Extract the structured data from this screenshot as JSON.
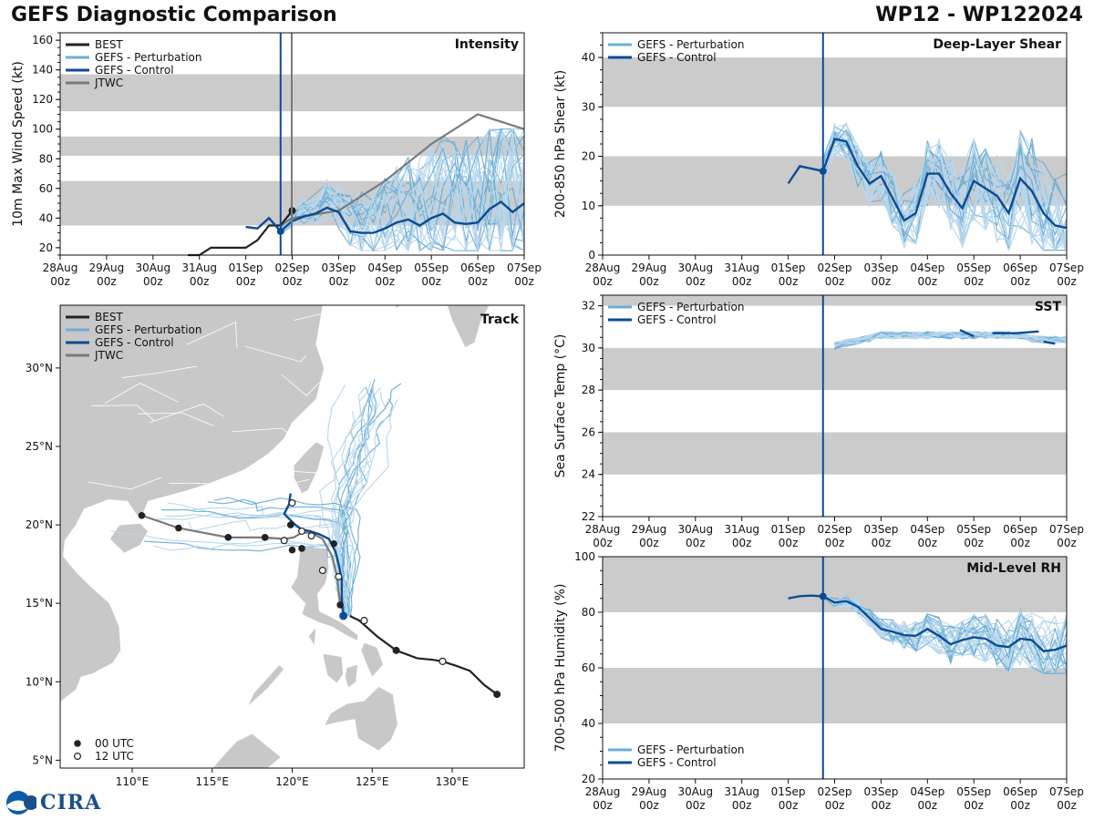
{
  "header": {
    "title_left": "GEFS Diagnostic Comparison",
    "title_right": "WP12 - WP122024"
  },
  "logo": {
    "text": "CIRA",
    "badge": "NOAA"
  },
  "colors": {
    "best": "#222222",
    "perturbation": "#6baed6",
    "perturbation_light": "#b9d7ec",
    "control": "#0b4c94",
    "jtwc": "#7a7a7a",
    "band": "#cbcbcb",
    "land": "#c8c8c8"
  },
  "time_axis": {
    "ticks": [
      "28Aug\n00z",
      "29Aug\n00z",
      "30Aug\n00z",
      "31Aug\n00z",
      "01Sep\n00z",
      "02Sep\n00z",
      "03Sep\n00z",
      "04Sep\n00z",
      "05Sep\n00z",
      "06Sep\n00z",
      "07Sep\n00z"
    ],
    "range_days": [
      0,
      10
    ],
    "init_day": 4.75
  },
  "chart_data": [
    {
      "id": "intensity",
      "type": "line",
      "title": "Intensity",
      "ylabel": "10m Max Wind Speed (kt)",
      "ylim": [
        15,
        165
      ],
      "yticks": [
        20,
        40,
        60,
        80,
        100,
        120,
        140,
        160
      ],
      "bands": [
        [
          35,
          65
        ],
        [
          82,
          95
        ],
        [
          112,
          137
        ]
      ],
      "legend": [
        "BEST",
        "GEFS - Perturbation",
        "GEFS - Control",
        "JTWC"
      ],
      "best": {
        "x": [
          2.75,
          3,
          3.25,
          3.5,
          3.75,
          4,
          4.25,
          4.5,
          4.75,
          5
        ],
        "y": [
          15,
          15,
          20,
          20,
          20,
          20,
          25,
          35,
          35,
          45
        ]
      },
      "best_label": "BEST",
      "control": {
        "name": "GEFS - Control",
        "x": [
          4,
          4.25,
          4.5,
          4.75,
          5,
          5.25,
          5.5,
          5.75,
          6,
          6.25,
          6.5,
          6.75,
          7,
          7.25,
          7.5,
          7.75,
          8,
          8.25,
          8.5,
          8.75,
          9,
          9.25,
          9.5,
          9.75,
          10
        ],
        "y": [
          34,
          33,
          40,
          31,
          38,
          41,
          43,
          47,
          44,
          31,
          30,
          30,
          33,
          37,
          39,
          35,
          40,
          43,
          37,
          36,
          37,
          46,
          51,
          44,
          50
        ]
      },
      "jtwc": {
        "name": "JTWC",
        "x": [
          4.75,
          5,
          6,
          7,
          8,
          9,
          10
        ],
        "y": [
          35,
          40,
          45,
          65,
          90,
          110,
          100
        ]
      },
      "init_marker_x": 4.75,
      "jtwc_line_x": 4.99
    },
    {
      "id": "shear",
      "type": "line",
      "title": "Deep-Layer Shear",
      "ylabel": "200-850 hPa Shear (kt)",
      "ylim": [
        0,
        45
      ],
      "yticks": [
        0,
        10,
        20,
        30,
        40
      ],
      "bands": [
        [
          10,
          20
        ],
        [
          30,
          40
        ]
      ],
      "legend": [
        "GEFS - Perturbation",
        "GEFS - Control"
      ],
      "control": {
        "name": "GEFS - Control",
        "x": [
          4,
          4.25,
          4.5,
          4.75,
          5,
          5.25,
          5.5,
          5.75,
          6,
          6.25,
          6.5,
          6.75,
          7,
          7.25,
          7.5,
          7.75,
          8,
          8.25,
          8.5,
          8.75,
          9,
          9.25,
          9.5,
          9.75,
          10
        ],
        "y": [
          14.5,
          18,
          17.5,
          17,
          23.5,
          23,
          18,
          14.5,
          16,
          11.5,
          7,
          8.5,
          16.5,
          16.5,
          12.5,
          9.5,
          15,
          13.5,
          12,
          8.5,
          15.5,
          13,
          8.5,
          6,
          5.5
        ]
      }
    },
    {
      "id": "sst",
      "type": "line",
      "title": "SST",
      "ylabel": "Sea Surface Temp (°C)",
      "ylim": [
        22,
        32.5
      ],
      "yticks": [
        22,
        24,
        26,
        28,
        30,
        32
      ],
      "bands": [
        [
          24,
          26
        ],
        [
          28,
          30
        ],
        [
          32,
          32.5
        ]
      ],
      "legend": [
        "GEFS - Perturbation",
        "GEFS - Control"
      ],
      "control": {
        "name": "GEFS - Control",
        "segments": [
          {
            "x": [
              7.7,
              8.0
            ],
            "y": [
              30.85,
              30.55
            ]
          },
          {
            "x": [
              8.4,
              8.9,
              9.4
            ],
            "y": [
              30.7,
              30.7,
              30.78
            ]
          },
          {
            "x": [
              9.5,
              9.75
            ],
            "y": [
              30.3,
              30.2
            ]
          }
        ]
      }
    },
    {
      "id": "rh",
      "type": "line",
      "title": "Mid-Level RH",
      "ylabel": "700-500 hPa Humidity (%)",
      "ylim": [
        20,
        100
      ],
      "yticks": [
        20,
        40,
        60,
        80,
        100
      ],
      "bands": [
        [
          40,
          60
        ],
        [
          80,
          100
        ]
      ],
      "legend": [
        "GEFS - Perturbation",
        "GEFS - Control"
      ],
      "control": {
        "name": "GEFS - Control",
        "x": [
          4,
          4.25,
          4.5,
          4.75,
          5,
          5.25,
          5.5,
          5.75,
          6,
          6.25,
          6.5,
          6.75,
          7,
          7.25,
          7.5,
          7.75,
          8,
          8.25,
          8.5,
          8.75,
          9,
          9.25,
          9.5,
          9.75,
          10
        ],
        "y": [
          85,
          85.8,
          86,
          85.7,
          83.5,
          84,
          82,
          78,
          74,
          73,
          71.8,
          71.5,
          74,
          71.5,
          68.5,
          70,
          71,
          70.5,
          68,
          67.5,
          70.5,
          70,
          66,
          66.5,
          68
        ]
      }
    },
    {
      "id": "track",
      "type": "scatter",
      "title": "Track",
      "lon_range": [
        105.5,
        134.5
      ],
      "lat_range": [
        4.5,
        34
      ],
      "lon_ticks": [
        "110°E",
        "115°E",
        "120°E",
        "125°E",
        "130°E"
      ],
      "lon_values": [
        110,
        115,
        120,
        125,
        130
      ],
      "lat_ticks": [
        "5°N",
        "10°N",
        "15°N",
        "20°N",
        "25°N",
        "30°N"
      ],
      "lat_values": [
        5,
        10,
        15,
        20,
        25,
        30
      ],
      "legend": [
        "BEST",
        "GEFS - Perturbation",
        "GEFS - Control",
        "JTWC"
      ],
      "utc_legend": [
        "00 UTC",
        "12 UTC"
      ],
      "best_track": {
        "lon": [
          132.8,
          132.0,
          131.1,
          130.3,
          129.4,
          128.8,
          127.8,
          126.5,
          125.3,
          124.2,
          123.6
        ],
        "lat": [
          9.2,
          9.8,
          10.7,
          11.0,
          11.3,
          11.4,
          11.5,
          12.0,
          12.9,
          13.9,
          14.2
        ]
      },
      "best_00utc": [
        [
          132.8,
          9.2
        ],
        [
          126.5,
          12.0
        ]
      ],
      "best_12utc": [
        [
          129.4,
          11.3
        ],
        [
          124.5,
          13.9
        ]
      ],
      "control_track": {
        "lon": [
          123.2,
          123.1,
          123.1,
          122.9,
          122.7,
          122.3,
          121.7,
          121.1,
          120.6,
          120.2,
          119.8,
          119.5,
          119.8,
          119.9
        ],
        "lat": [
          14.2,
          15.2,
          16.5,
          17.5,
          18.3,
          19.1,
          19.4,
          19.6,
          19.7,
          20.0,
          20.4,
          20.7,
          21.3,
          22.0
        ]
      },
      "jtwc_track": {
        "lon": [
          123.0,
          122.8,
          122.5,
          121.9,
          121.2,
          120.6,
          120.1,
          119.5,
          118.3,
          116.0,
          112.9,
          110.6
        ],
        "lat": [
          14.9,
          16.7,
          18.0,
          19.1,
          19.5,
          19.5,
          19.2,
          19.1,
          19.2,
          19.2,
          19.8,
          20.6
        ]
      },
      "jtwc_00utc": [
        [
          123.0,
          14.9
        ],
        [
          120.6,
          18.5
        ],
        [
          118.3,
          19.2
        ],
        [
          116.0,
          19.2
        ],
        [
          112.9,
          19.8
        ],
        [
          110.6,
          20.6
        ],
        [
          119.9,
          20.0
        ],
        [
          120.0,
          18.4
        ],
        [
          122.6,
          18.8
        ]
      ],
      "jtwc_12utc": [
        [
          122.9,
          16.7
        ],
        [
          121.9,
          17.1
        ],
        [
          121.2,
          19.3
        ],
        [
          120.6,
          19.6
        ],
        [
          119.5,
          19.0
        ],
        [
          120.0,
          21.4
        ]
      ]
    }
  ]
}
